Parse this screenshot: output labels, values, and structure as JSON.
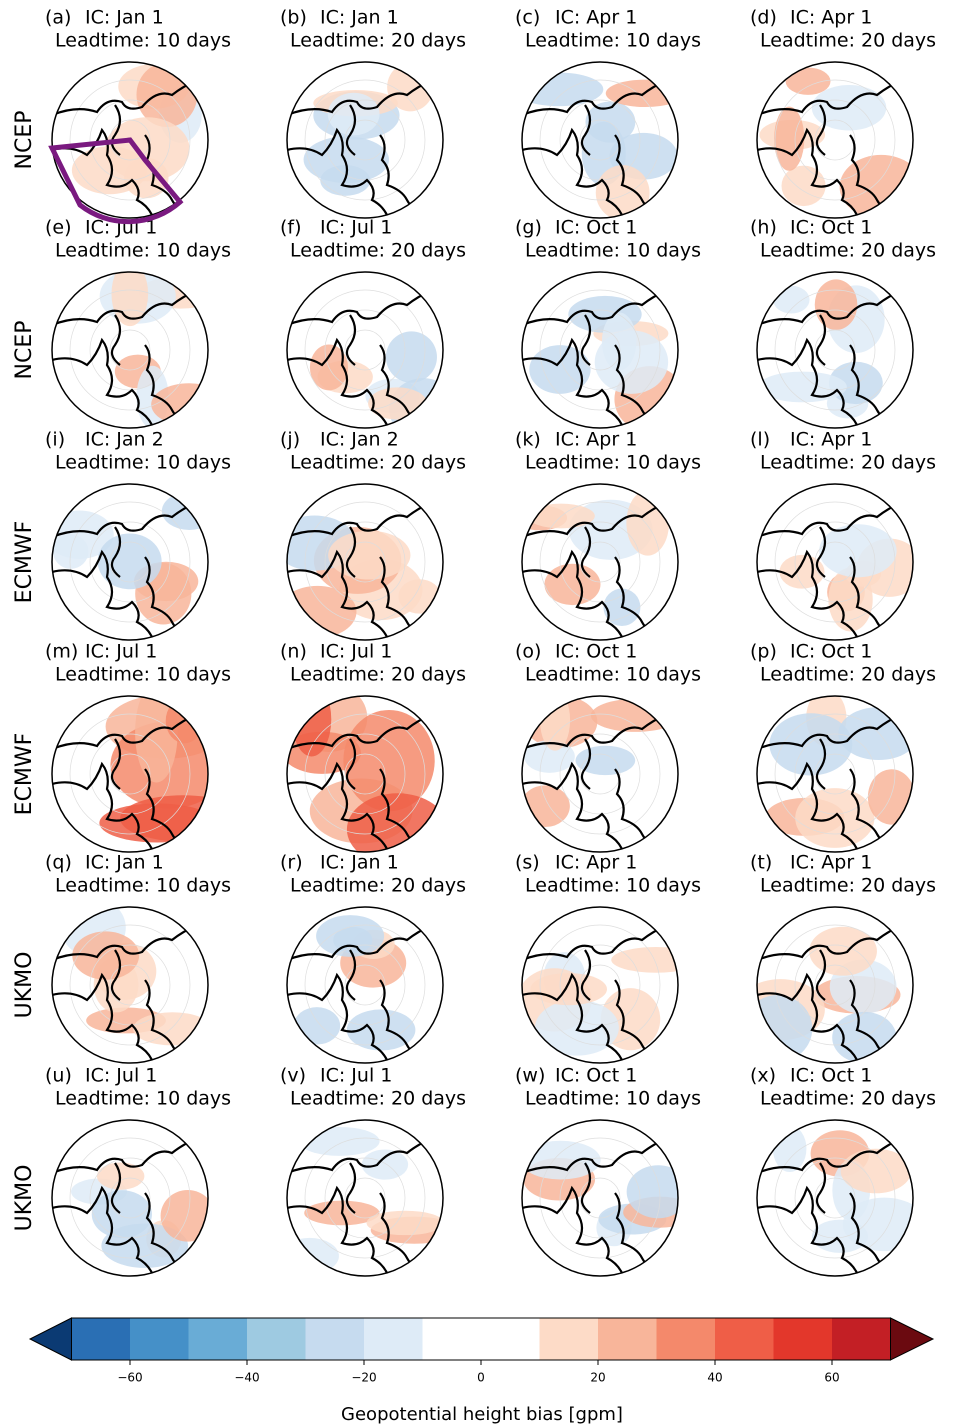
{
  "figure": {
    "row_labels": [
      "NCEP",
      "NCEP",
      "ECMWF",
      "ECMWF",
      "UKMO",
      "UKMO"
    ],
    "panels": [
      {
        "letter": "(a)",
        "ic": "IC: Jan 1",
        "leadtime": "Leadtime: 10 days"
      },
      {
        "letter": "(b)",
        "ic": "IC: Jan 1",
        "leadtime": "Leadtime: 20 days"
      },
      {
        "letter": "(c)",
        "ic": "IC: Apr 1",
        "leadtime": "Leadtime: 10 days"
      },
      {
        "letter": "(d)",
        "ic": "IC: Apr 1",
        "leadtime": "Leadtime: 20 days"
      },
      {
        "letter": "(e)",
        "ic": "IC: Jul 1",
        "leadtime": "Leadtime: 10 days"
      },
      {
        "letter": "(f)",
        "ic": "IC: Jul 1",
        "leadtime": "Leadtime: 20 days"
      },
      {
        "letter": "(g)",
        "ic": "IC: Oct 1",
        "leadtime": "Leadtime: 10 days"
      },
      {
        "letter": "(h)",
        "ic": "IC: Oct 1",
        "leadtime": "Leadtime: 20 days"
      },
      {
        "letter": "(i)",
        "ic": "IC: Jan 2",
        "leadtime": "Leadtime: 10 days"
      },
      {
        "letter": "(j)",
        "ic": "IC: Jan 2",
        "leadtime": "Leadtime: 20 days"
      },
      {
        "letter": "(k)",
        "ic": "IC: Apr 1",
        "leadtime": "Leadtime: 10 days"
      },
      {
        "letter": "(l)",
        "ic": "IC: Apr 1",
        "leadtime": "Leadtime: 20 days"
      },
      {
        "letter": "(m)",
        "ic": "IC: Jul 1",
        "leadtime": "Leadtime: 10 days"
      },
      {
        "letter": "(n)",
        "ic": "IC: Jul 1",
        "leadtime": "Leadtime: 20 days"
      },
      {
        "letter": "(o)",
        "ic": "IC: Oct 1",
        "leadtime": "Leadtime: 10 days"
      },
      {
        "letter": "(p)",
        "ic": "IC: Oct 1",
        "leadtime": "Leadtime: 20 days"
      },
      {
        "letter": "(q)",
        "ic": "IC: Jan 1",
        "leadtime": "Leadtime: 10 days"
      },
      {
        "letter": "(r)",
        "ic": "IC: Jan 1",
        "leadtime": "Leadtime: 20 days"
      },
      {
        "letter": "(s)",
        "ic": "IC: Apr 1",
        "leadtime": "Leadtime: 10 days"
      },
      {
        "letter": "(t)",
        "ic": "IC: Apr 1",
        "leadtime": "Leadtime: 20 days"
      },
      {
        "letter": "(u)",
        "ic": "IC: Jul 1",
        "leadtime": "Leadtime: 10 days"
      },
      {
        "letter": "(v)",
        "ic": "IC: Jul 1",
        "leadtime": "Leadtime: 20 days"
      },
      {
        "letter": "(w)",
        "ic": "IC: Oct 1",
        "leadtime": "Leadtime: 10 days"
      },
      {
        "letter": "(x)",
        "ic": "IC: Oct 1",
        "leadtime": "Leadtime: 20 days"
      }
    ],
    "colorbar": {
      "label": "Geopotential height bias [gpm]",
      "boundaries": [
        -70,
        -60,
        -50,
        -40,
        -30,
        -20,
        -10,
        0,
        10,
        20,
        30,
        40,
        50,
        60,
        70
      ],
      "colors": [
        "#2a6fb4",
        "#4590c8",
        "#69acd6",
        "#9ecae1",
        "#c6dbef",
        "#deebf7",
        "#ffffff",
        "#ffffff",
        "#fddbc7",
        "#f8b59a",
        "#f4896b",
        "#ef5e47",
        "#e3372b",
        "#c31f25"
      ],
      "under_color": "#0b3a73",
      "over_color": "#6b0a10",
      "ticks": [
        {
          "value": -60,
          "label": "−60"
        },
        {
          "value": -40,
          "label": "−40"
        },
        {
          "value": -20,
          "label": "−20"
        },
        0,
        20,
        40,
        60
      ]
    }
  }
}
